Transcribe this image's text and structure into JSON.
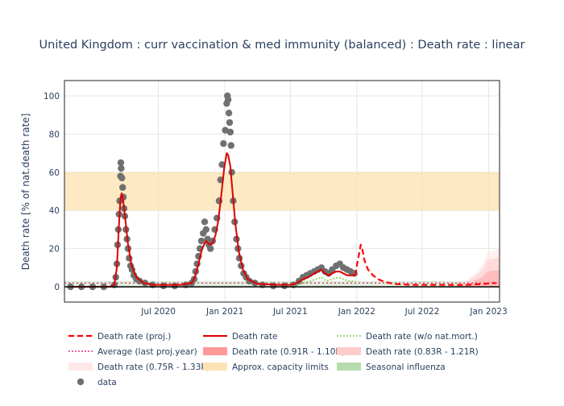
{
  "chart_data": {
    "type": "line",
    "title": "United Kingdom : curr vaccination & med immunity (balanced) : Death rate : linear",
    "ylabel": "Death rate [% of nat.death rate]",
    "xlabel": "",
    "xlim": [
      "2019-10-15",
      "2023-01-31"
    ],
    "ylim": [
      -8,
      108
    ],
    "x_ticks": [
      {
        "date": "2020-07-01",
        "label": "Jul 2020"
      },
      {
        "date": "2021-01-01",
        "label": "Jan 2021"
      },
      {
        "date": "2021-07-01",
        "label": "Jul 2021"
      },
      {
        "date": "2022-01-01",
        "label": "Jan 2022"
      },
      {
        "date": "2022-07-01",
        "label": "Jul 2022"
      },
      {
        "date": "2023-01-01",
        "label": "Jan 2023"
      }
    ],
    "y_ticks": [
      0,
      20,
      40,
      60,
      80,
      100
    ],
    "grid": true,
    "legend_position": "bottom",
    "legend": [
      {
        "label": "Death rate (proj.)",
        "kind": "dash",
        "color": "#ff0000"
      },
      {
        "label": "Death rate",
        "kind": "line",
        "color": "#dd0000"
      },
      {
        "label": "Death rate (w/o nat.mort.)",
        "kind": "dot",
        "color": "#88cc55"
      },
      {
        "label": "Average (last proj.year)",
        "kind": "dot",
        "color": "#dd3388"
      },
      {
        "label": "Death rate (0.91R - 1.10R)",
        "kind": "band",
        "color": "#ff9999"
      },
      {
        "label": "Death rate (0.83R - 1.21R)",
        "kind": "band",
        "color": "#ffcccc"
      },
      {
        "label": "Death rate (0.75R - 1.33R)",
        "kind": "band",
        "color": "#ffe8e8"
      },
      {
        "label": "Approx. capacity limits",
        "kind": "band",
        "color": "#fde3b4"
      },
      {
        "label": "Seasonal influenza",
        "kind": "band",
        "color": "#b6dcae"
      },
      {
        "label": "data",
        "kind": "marker",
        "color": "#707070"
      }
    ],
    "capacity_band": [
      40,
      60
    ],
    "influenza_band": [
      0,
      3
    ],
    "average_level": 2,
    "series": [
      {
        "name": "data",
        "type": "scatter",
        "color": "#707070",
        "points": [
          [
            "2019-11-01",
            0
          ],
          [
            "2019-12-01",
            0
          ],
          [
            "2020-01-01",
            0
          ],
          [
            "2020-02-01",
            0
          ],
          [
            "2020-03-01",
            1
          ],
          [
            "2020-03-05",
            5
          ],
          [
            "2020-03-08",
            12
          ],
          [
            "2020-03-10",
            22
          ],
          [
            "2020-03-12",
            30
          ],
          [
            "2020-03-14",
            38
          ],
          [
            "2020-03-16",
            45
          ],
          [
            "2020-03-18",
            58
          ],
          [
            "2020-03-19",
            65
          ],
          [
            "2020-03-20",
            62
          ],
          [
            "2020-03-22",
            57
          ],
          [
            "2020-03-24",
            52
          ],
          [
            "2020-03-26",
            47
          ],
          [
            "2020-03-28",
            41
          ],
          [
            "2020-03-30",
            37
          ],
          [
            "2020-04-02",
            30
          ],
          [
            "2020-04-05",
            25
          ],
          [
            "2020-04-08",
            20
          ],
          [
            "2020-04-11",
            15
          ],
          [
            "2020-04-15",
            11
          ],
          [
            "2020-04-19",
            9
          ],
          [
            "2020-04-24",
            6
          ],
          [
            "2020-05-01",
            4
          ],
          [
            "2020-05-10",
            3
          ],
          [
            "2020-05-25",
            2
          ],
          [
            "2020-06-15",
            1
          ],
          [
            "2020-07-15",
            0.5
          ],
          [
            "2020-08-15",
            0.5
          ],
          [
            "2020-09-15",
            1
          ],
          [
            "2020-10-01",
            2
          ],
          [
            "2020-10-08",
            4
          ],
          [
            "2020-10-12",
            8
          ],
          [
            "2020-10-16",
            12
          ],
          [
            "2020-10-20",
            16
          ],
          [
            "2020-10-24",
            20
          ],
          [
            "2020-10-28",
            24
          ],
          [
            "2020-11-02",
            28
          ],
          [
            "2020-11-06",
            34
          ],
          [
            "2020-11-10",
            30
          ],
          [
            "2020-11-14",
            25
          ],
          [
            "2020-11-18",
            22
          ],
          [
            "2020-11-22",
            20
          ],
          [
            "2020-11-28",
            24
          ],
          [
            "2020-12-04",
            30
          ],
          [
            "2020-12-10",
            36
          ],
          [
            "2020-12-16",
            45
          ],
          [
            "2020-12-20",
            56
          ],
          [
            "2020-12-24",
            64
          ],
          [
            "2020-12-28",
            75
          ],
          [
            "2021-01-02",
            82
          ],
          [
            "2021-01-06",
            96
          ],
          [
            "2021-01-08",
            100
          ],
          [
            "2021-01-10",
            98
          ],
          [
            "2021-01-12",
            91
          ],
          [
            "2021-01-14",
            86
          ],
          [
            "2021-01-16",
            81
          ],
          [
            "2021-01-18",
            74
          ],
          [
            "2021-01-20",
            60
          ],
          [
            "2021-01-24",
            45
          ],
          [
            "2021-01-28",
            34
          ],
          [
            "2021-02-02",
            25
          ],
          [
            "2021-02-06",
            20
          ],
          [
            "2021-02-10",
            15
          ],
          [
            "2021-02-15",
            11
          ],
          [
            "2021-02-22",
            7
          ],
          [
            "2021-03-01",
            5
          ],
          [
            "2021-03-10",
            3
          ],
          [
            "2021-03-25",
            2
          ],
          [
            "2021-04-15",
            1
          ],
          [
            "2021-05-15",
            0.5
          ],
          [
            "2021-06-15",
            0.5
          ],
          [
            "2021-07-10",
            1
          ],
          [
            "2021-07-25",
            3
          ],
          [
            "2021-08-05",
            5
          ],
          [
            "2021-08-15",
            6
          ],
          [
            "2021-08-25",
            7
          ],
          [
            "2021-09-05",
            8
          ],
          [
            "2021-09-15",
            9
          ],
          [
            "2021-09-25",
            10
          ],
          [
            "2021-10-05",
            8
          ],
          [
            "2021-10-15",
            7
          ],
          [
            "2021-10-25",
            9
          ],
          [
            "2021-11-05",
            11
          ],
          [
            "2021-11-15",
            12
          ],
          [
            "2021-11-25",
            10
          ],
          [
            "2021-12-05",
            9
          ],
          [
            "2021-12-15",
            8
          ],
          [
            "2021-12-25",
            7
          ]
        ]
      },
      {
        "name": "Death rate",
        "type": "line",
        "color": "#dd0000",
        "points": [
          [
            "2019-11-01",
            0
          ],
          [
            "2020-02-15",
            0
          ],
          [
            "2020-03-01",
            1
          ],
          [
            "2020-03-08",
            10
          ],
          [
            "2020-03-14",
            33
          ],
          [
            "2020-03-18",
            46
          ],
          [
            "2020-03-21",
            49
          ],
          [
            "2020-03-25",
            46
          ],
          [
            "2020-03-31",
            36
          ],
          [
            "2020-04-08",
            22
          ],
          [
            "2020-04-18",
            11
          ],
          [
            "2020-05-01",
            5
          ],
          [
            "2020-05-20",
            2
          ],
          [
            "2020-06-15",
            1
          ],
          [
            "2020-09-01",
            1
          ],
          [
            "2020-10-01",
            2
          ],
          [
            "2020-10-10",
            5
          ],
          [
            "2020-10-20",
            12
          ],
          [
            "2020-10-30",
            20
          ],
          [
            "2020-11-10",
            24
          ],
          [
            "2020-11-20",
            22
          ],
          [
            "2020-11-28",
            23
          ],
          [
            "2020-12-06",
            27
          ],
          [
            "2020-12-14",
            35
          ],
          [
            "2020-12-22",
            48
          ],
          [
            "2020-12-30",
            62
          ],
          [
            "2021-01-06",
            70
          ],
          [
            "2021-01-10",
            69
          ],
          [
            "2021-01-16",
            63
          ],
          [
            "2021-01-22",
            50
          ],
          [
            "2021-01-30",
            33
          ],
          [
            "2021-02-08",
            19
          ],
          [
            "2021-02-20",
            9
          ],
          [
            "2021-03-05",
            4
          ],
          [
            "2021-04-01",
            1.5
          ],
          [
            "2021-06-01",
            1
          ],
          [
            "2021-07-01",
            1
          ],
          [
            "2021-07-20",
            2
          ],
          [
            "2021-08-05",
            4
          ],
          [
            "2021-08-20",
            5
          ],
          [
            "2021-09-05",
            7
          ],
          [
            "2021-09-15",
            8
          ],
          [
            "2021-09-25",
            9
          ],
          [
            "2021-10-05",
            7
          ],
          [
            "2021-10-15",
            6
          ],
          [
            "2021-10-25",
            7
          ],
          [
            "2021-11-05",
            8
          ],
          [
            "2021-11-15",
            8
          ],
          [
            "2021-11-25",
            7
          ],
          [
            "2021-12-05",
            6
          ],
          [
            "2021-12-20",
            6
          ],
          [
            "2021-12-28",
            6
          ]
        ]
      },
      {
        "name": "Death rate (w/o nat.mort.)",
        "type": "line",
        "color": "#88cc55",
        "points": [
          [
            "2021-06-15",
            0
          ],
          [
            "2021-07-15",
            0.5
          ],
          [
            "2021-08-05",
            2
          ],
          [
            "2021-08-25",
            3
          ],
          [
            "2021-09-10",
            4
          ],
          [
            "2021-09-25",
            5
          ],
          [
            "2021-10-10",
            3
          ],
          [
            "2021-10-25",
            4
          ],
          [
            "2021-11-10",
            5
          ],
          [
            "2021-11-25",
            4
          ],
          [
            "2021-12-10",
            3
          ],
          [
            "2021-12-28",
            3
          ]
        ]
      },
      {
        "name": "Death rate (proj.)",
        "type": "line",
        "color": "#ff0000",
        "points": [
          [
            "2021-12-28",
            6
          ],
          [
            "2022-01-02",
            12
          ],
          [
            "2022-01-08",
            18
          ],
          [
            "2022-01-12",
            22
          ],
          [
            "2022-01-16",
            20
          ],
          [
            "2022-01-22",
            14
          ],
          [
            "2022-02-01",
            9
          ],
          [
            "2022-02-15",
            6
          ],
          [
            "2022-03-01",
            4
          ],
          [
            "2022-03-20",
            2.5
          ],
          [
            "2022-04-15",
            1.5
          ],
          [
            "2022-06-01",
            1
          ],
          [
            "2022-09-01",
            1
          ],
          [
            "2022-11-01",
            1
          ],
          [
            "2022-12-15",
            1.5
          ],
          [
            "2023-01-20",
            2
          ]
        ]
      }
    ]
  }
}
